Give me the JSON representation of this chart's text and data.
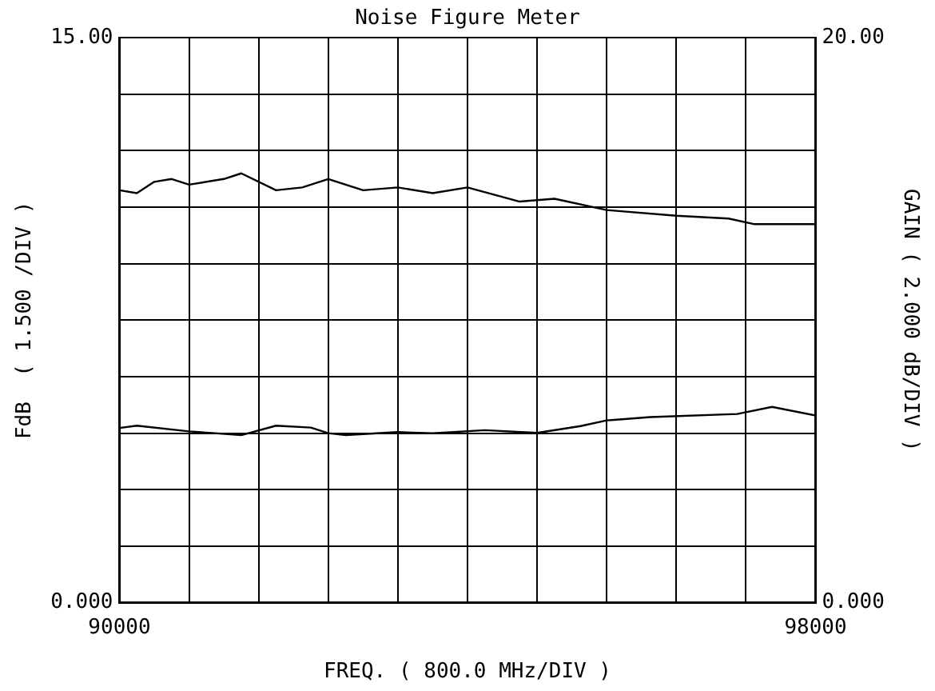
{
  "chart_data": {
    "type": "line",
    "title": "Noise Figure Meter",
    "xlabel": "FREQ. ( 800.0 MHz/DIV )",
    "ylabel": "FdB  ( 1.500 /DIV )",
    "y2label": "GAIN ( 2.000 dB/DIV )",
    "xlim": [
      90000,
      98000
    ],
    "xticks": [
      90000,
      {
        "value": 90800,
        "label": null
      },
      {
        "value": 91600,
        "label": null
      },
      {
        "value": 92400,
        "label": null
      },
      {
        "value": 93200,
        "label": null
      },
      {
        "value": 94000,
        "label": null
      },
      {
        "value": 94800,
        "label": null
      },
      {
        "value": 95600,
        "label": null
      },
      {
        "value": 96400,
        "label": null
      },
      {
        "value": 97200,
        "label": null
      },
      98000
    ],
    "ylim": [
      0,
      15
    ],
    "yticks": [
      {
        "value": 0,
        "label": "0.000"
      },
      {
        "value": 1.5,
        "label": null
      },
      {
        "value": 3,
        "label": null
      },
      {
        "value": 4.5,
        "label": null
      },
      {
        "value": 6,
        "label": null
      },
      {
        "value": 7.5,
        "label": null
      },
      {
        "value": 9,
        "label": null
      },
      {
        "value": 10.5,
        "label": null
      },
      {
        "value": 12,
        "label": null
      },
      {
        "value": 13.5,
        "label": null
      },
      {
        "value": 15,
        "label": "15.00"
      }
    ],
    "y2lim": [
      0,
      20
    ],
    "y2ticks": [
      {
        "value": 0,
        "label": "0.000"
      },
      {
        "value": 20,
        "label": "20.00"
      }
    ],
    "grid": true,
    "marker": "none",
    "line_style": "solid",
    "series": [
      {
        "color": "#000000",
        "axis": "y2",
        "x": [
          90000,
          90200,
          90400,
          90600,
          90800,
          91200,
          91400,
          91800,
          92100,
          92400,
          92800,
          93200,
          93600,
          94000,
          94600,
          95000,
          95600,
          96400,
          97000,
          97300,
          98000
        ],
        "values": [
          14.6,
          14.5,
          14.9,
          15.0,
          14.8,
          15.0,
          15.2,
          14.6,
          14.7,
          15.0,
          14.6,
          14.7,
          14.5,
          14.7,
          14.2,
          14.3,
          13.9,
          13.7,
          13.6,
          13.4,
          13.4
        ]
      },
      {
        "color": "#000000",
        "axis": "y",
        "x": [
          90000,
          90200,
          90800,
          91400,
          91800,
          92200,
          92400,
          92600,
          93200,
          93600,
          94200,
          94800,
          95300,
          95600,
          96100,
          97100,
          97500,
          98000
        ],
        "values": [
          4.64,
          4.7,
          4.55,
          4.45,
          4.7,
          4.65,
          4.5,
          4.45,
          4.53,
          4.5,
          4.58,
          4.51,
          4.69,
          4.84,
          4.93,
          5.01,
          5.2,
          4.97
        ]
      }
    ]
  }
}
